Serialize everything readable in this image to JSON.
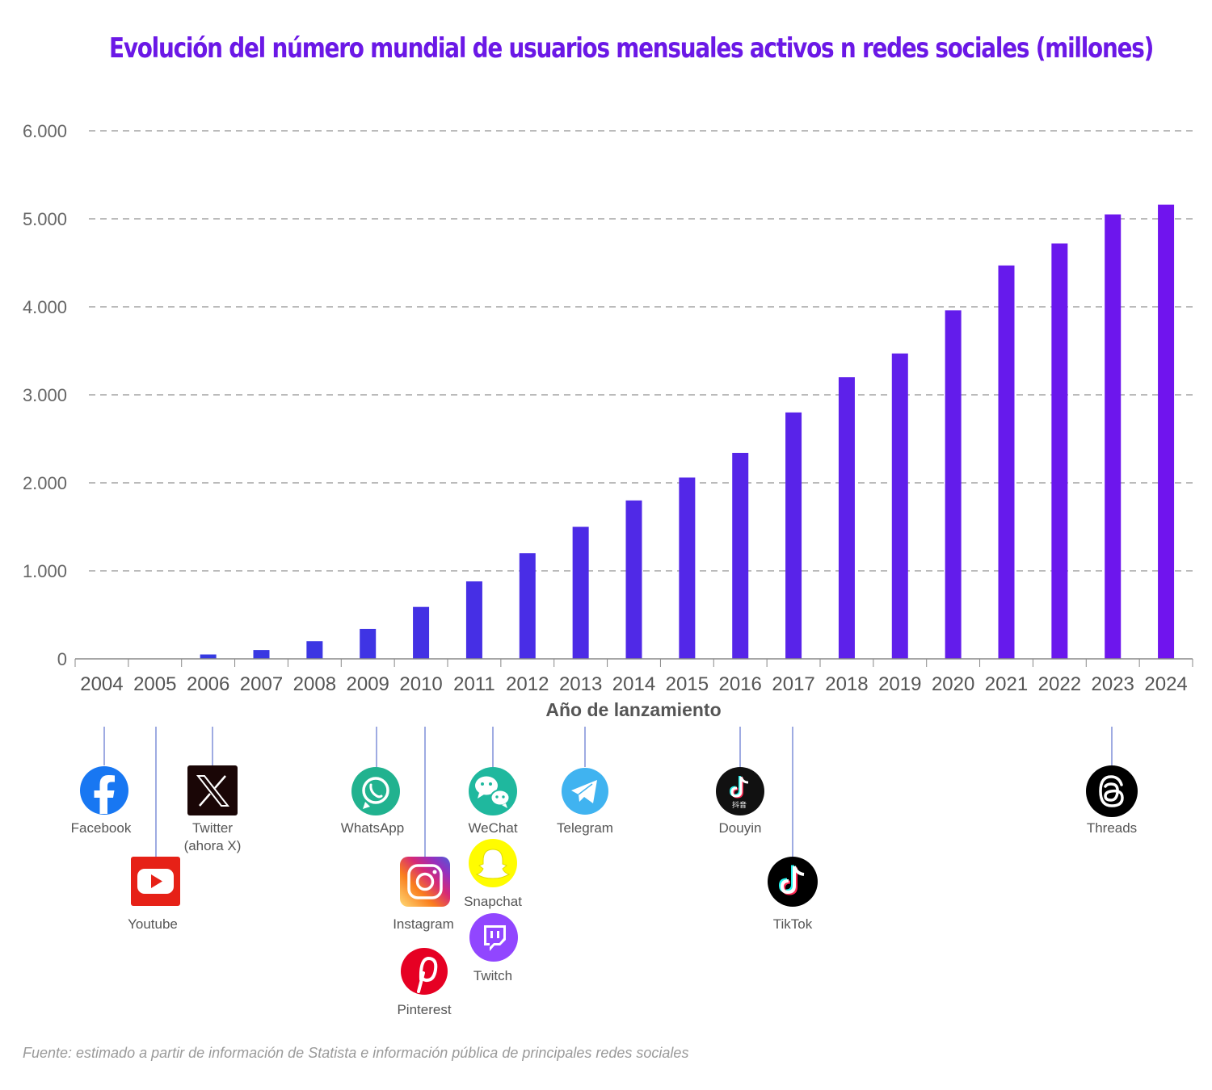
{
  "title": "Evolución del número mundial de usuarios mensuales activos n redes sociales (millones)",
  "source": "Fuente: estimado a partir de información de Statista e información pública de principales redes sociales",
  "colors": {
    "title": "#6b18e6",
    "bar_start": "#2f3ee0",
    "bar_end": "#7014ee",
    "grid": "#777777",
    "connector": "#7f8fd8"
  },
  "chart_data": {
    "type": "bar",
    "title": "Evolución del número mundial de usuarios mensuales activos n redes sociales (millones)",
    "xlabel": "Año de lanzamiento",
    "ylabel": "",
    "ylim": [
      0,
      6000
    ],
    "yticks": [
      0,
      1000,
      2000,
      3000,
      4000,
      5000,
      6000
    ],
    "ytick_labels": [
      "0",
      "1.000",
      "2.000",
      "3.000",
      "4.000",
      "5.000",
      "6.000"
    ],
    "grid": true,
    "categories": [
      "2004",
      "2005",
      "2006",
      "2007",
      "2008",
      "2009",
      "2010",
      "2011",
      "2012",
      "2013",
      "2014",
      "2015",
      "2016",
      "2017",
      "2018",
      "2019",
      "2020",
      "2021",
      "2022",
      "2023",
      "2024"
    ],
    "values": [
      0,
      0,
      50,
      100,
      200,
      340,
      590,
      880,
      1200,
      1500,
      1800,
      2060,
      2340,
      2800,
      3200,
      3470,
      3960,
      4470,
      4720,
      5050,
      5160
    ]
  },
  "platforms": [
    {
      "name": "Facebook",
      "year": "2004",
      "icon": "facebook-icon",
      "color": "#1877f2"
    },
    {
      "name": "Youtube",
      "year": "2005",
      "icon": "youtube-icon",
      "color": "#e62117"
    },
    {
      "name": "Twitter",
      "name2": "(ahora X)",
      "year": "2006",
      "icon": "x-twitter-icon",
      "color": "#1a0606"
    },
    {
      "name": "WhatsApp",
      "year": "2009",
      "icon": "whatsapp-icon",
      "color": "#21b28f"
    },
    {
      "name": "Instagram",
      "year": "2010",
      "icon": "instagram-icon",
      "color": "#c13584"
    },
    {
      "name": "Pinterest",
      "year": "2010",
      "icon": "pinterest-icon",
      "color": "#e60023"
    },
    {
      "name": "WeChat",
      "year": "2011",
      "icon": "wechat-icon",
      "color": "#1fb89e"
    },
    {
      "name": "Snapchat",
      "year": "2011",
      "icon": "snapchat-icon",
      "color": "#fffc00"
    },
    {
      "name": "Twitch",
      "year": "2011",
      "icon": "twitch-icon",
      "color": "#9146ff"
    },
    {
      "name": "Telegram",
      "year": "2013",
      "icon": "telegram-icon",
      "color": "#40b3f0"
    },
    {
      "name": "Douyin",
      "year": "2016",
      "icon": "douyin-icon",
      "color": "#111111",
      "badge": "抖音"
    },
    {
      "name": "TikTok",
      "year": "2017",
      "icon": "tiktok-icon",
      "color": "#000000"
    },
    {
      "name": "Threads",
      "year": "2023",
      "icon": "threads-icon",
      "color": "#000000"
    }
  ]
}
